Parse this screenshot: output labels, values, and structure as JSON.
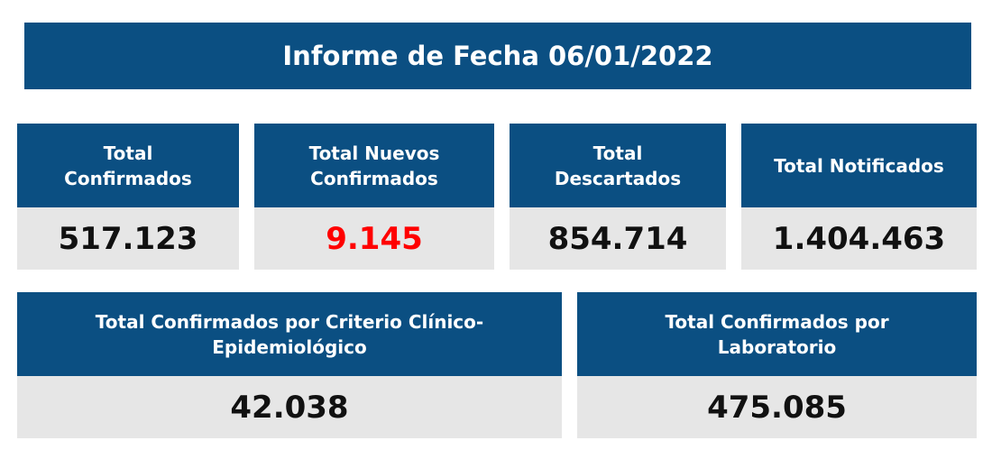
{
  "header": {
    "title": "Informe de Fecha 06/01/2022"
  },
  "cards_row1": [
    {
      "label": "Total Confirmados",
      "value": "517.123"
    },
    {
      "label": "Total Nuevos Confirmados",
      "value": "9.145",
      "value_color": "#ff0000"
    },
    {
      "label": "Total Descartados",
      "value": "854.714"
    },
    {
      "label": "Total Notificados",
      "value": "1.404.463"
    }
  ],
  "cards_row2": [
    {
      "label": "Total Confirmados por Criterio Clínico-Epidemiológico",
      "value": "42.038"
    },
    {
      "label": "Total Confirmados por Laboratorio",
      "value": "475.085"
    }
  ],
  "colors": {
    "header_bg": "#0b4f82",
    "value_bg": "#e6e6e6",
    "highlight": "#ff0000"
  }
}
